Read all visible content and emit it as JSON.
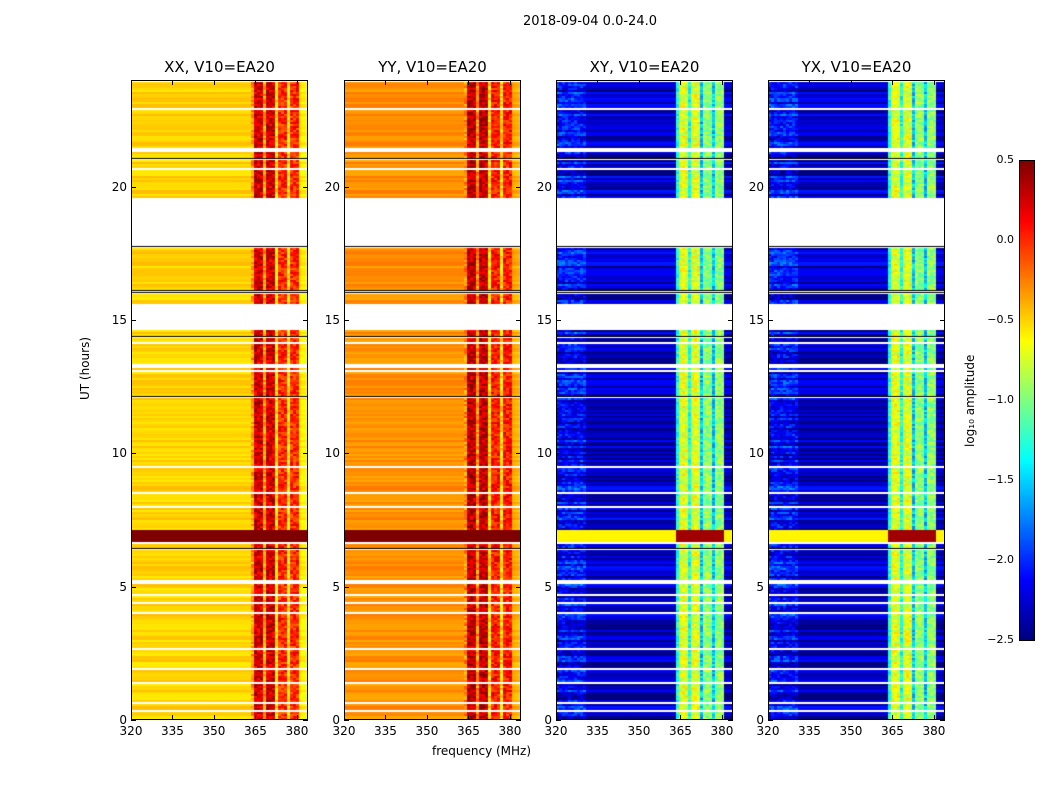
{
  "figure": {
    "suptitle": "2018-09-04 0.0-24.0"
  },
  "chart_data": {
    "type": "heatmap",
    "title": "2018-09-04 0.0-24.0",
    "xlabel": "frequency (MHz)",
    "ylabel": "UT (hours)",
    "xlim": [
      320,
      384
    ],
    "ylim": [
      0,
      24
    ],
    "xticks": [
      "320",
      "335",
      "350",
      "365",
      "380"
    ],
    "yticks": [
      "0",
      "5",
      "10",
      "15",
      "20"
    ],
    "panels": [
      {
        "title": "XX, V10=EA20",
        "base": -0.5,
        "band": 0.25
      },
      {
        "title": "YY, V10=EA20",
        "base": -0.3,
        "band": 0.3
      },
      {
        "title": "XY, V10=EA20",
        "base": -2.3,
        "band": -0.7
      },
      {
        "title": "YX, V10=EA20",
        "base": -2.3,
        "band": -0.7
      }
    ],
    "bright_band_mhz": [
      363,
      380
    ],
    "flagged_hours": [
      [
        17.8,
        19.6
      ],
      [
        14.7,
        15.65
      ]
    ],
    "strong_rfi_hours": [
      6.7,
      7.2
    ],
    "colorbar": {
      "label": "log₁₀ amplitude",
      "range": [
        -2.5,
        0.5
      ],
      "ticks": [
        "0.5",
        "0.0",
        "−0.5",
        "−1.0",
        "−1.5",
        "−2.0",
        "−2.5"
      ],
      "colormap": "jet"
    }
  }
}
